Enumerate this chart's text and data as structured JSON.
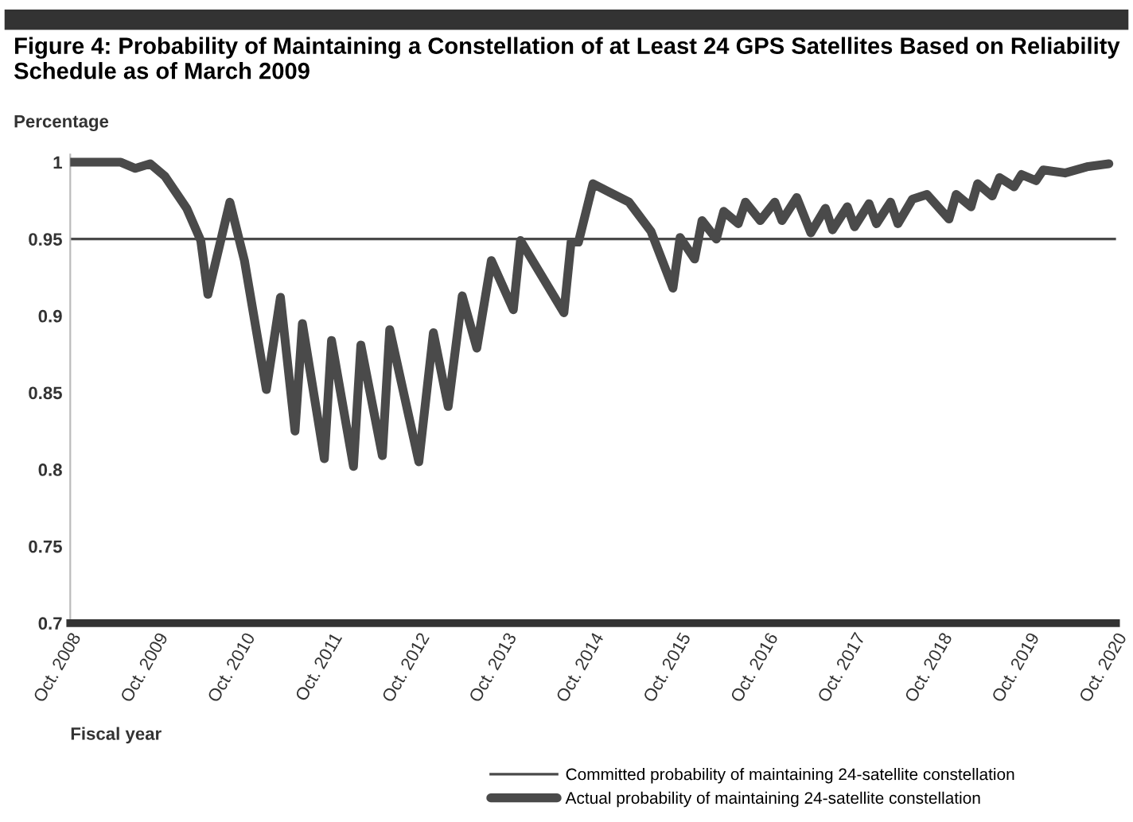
{
  "chart_data": {
    "type": "line",
    "title": "Figure 4: Probability of Maintaining a Constellation of at Least 24 GPS Satellites Based on Reliability Schedule as of March 2009",
    "ylabel": "Percentage",
    "xlabel": "Fiscal year",
    "series": [
      {
        "name": "Actual probability of maintaining 24-satellite constellation",
        "color": "#4a4a4a",
        "x": [
          "2008-10",
          "2009-05",
          "2009-07",
          "2009-09",
          "2009-11",
          "2010-02",
          "2010-04",
          "2010-05",
          "2010-08",
          "2010-10",
          "2011-01",
          "2011-03",
          "2011-05",
          "2011-06",
          "2011-09",
          "2011-10",
          "2012-01",
          "2012-02",
          "2012-05",
          "2012-06",
          "2012-10",
          "2012-12",
          "2013-02",
          "2013-04",
          "2013-06",
          "2013-08",
          "2013-11",
          "2013-12",
          "2014-06",
          "2014-07",
          "2014-08",
          "2014-10",
          "2015-03",
          "2015-06",
          "2015-09",
          "2015-10",
          "2015-12",
          "2016-01",
          "2016-03",
          "2016-04",
          "2016-06",
          "2016-07",
          "2016-09",
          "2016-11",
          "2016-12",
          "2017-02",
          "2017-04",
          "2017-06",
          "2017-07",
          "2017-09",
          "2017-10",
          "2017-12",
          "2018-01",
          "2018-03",
          "2018-04",
          "2018-06",
          "2018-08",
          "2018-11",
          "2018-12",
          "2019-02",
          "2019-03",
          "2019-05",
          "2019-06",
          "2019-08",
          "2019-09",
          "2019-11",
          "2019-12",
          "2020-03",
          "2020-06",
          "2020-09"
        ],
        "values": [
          1.0,
          1.0,
          0.996,
          0.999,
          0.991,
          0.97,
          0.949,
          0.914,
          0.974,
          0.936,
          0.852,
          0.912,
          0.825,
          0.895,
          0.807,
          0.884,
          0.802,
          0.881,
          0.809,
          0.891,
          0.805,
          0.889,
          0.841,
          0.913,
          0.879,
          0.936,
          0.904,
          0.949,
          0.902,
          0.948,
          0.948,
          0.986,
          0.974,
          0.955,
          0.918,
          0.951,
          0.937,
          0.962,
          0.95,
          0.968,
          0.96,
          0.974,
          0.962,
          0.974,
          0.962,
          0.977,
          0.954,
          0.97,
          0.956,
          0.971,
          0.958,
          0.973,
          0.96,
          0.974,
          0.96,
          0.976,
          0.979,
          0.963,
          0.979,
          0.971,
          0.986,
          0.978,
          0.99,
          0.984,
          0.992,
          0.988,
          0.995,
          0.993,
          0.997,
          0.999
        ]
      }
    ],
    "ref_lines": [
      {
        "axis": "y",
        "value": 0.95,
        "label": "Committed probability of maintaining 24-satellite constellation",
        "color": "#4a4a4a"
      }
    ],
    "xlim": [
      "2008-10",
      "2020-10"
    ],
    "xticks": [
      {
        "value": "2008-10",
        "label": "Oct. 2008"
      },
      {
        "value": "2009-10",
        "label": "Oct. 2009"
      },
      {
        "value": "2010-10",
        "label": "Oct. 2010"
      },
      {
        "value": "2011-10",
        "label": "Oct. 2011"
      },
      {
        "value": "2012-10",
        "label": "Oct. 2012"
      },
      {
        "value": "2013-10",
        "label": "Oct. 2013"
      },
      {
        "value": "2014-10",
        "label": "Oct. 2014"
      },
      {
        "value": "2015-10",
        "label": "Oct. 2015"
      },
      {
        "value": "2016-10",
        "label": "Oct. 2016"
      },
      {
        "value": "2017-10",
        "label": "Oct. 2017"
      },
      {
        "value": "2018-10",
        "label": "Oct. 2018"
      },
      {
        "value": "2019-10",
        "label": "Oct. 2019"
      },
      {
        "value": "2020-10",
        "label": "Oct. 2020"
      }
    ],
    "ylim": [
      0.7,
      1.005
    ],
    "yticks": [
      0.7,
      0.75,
      0.8,
      0.85,
      0.9,
      0.95,
      1
    ],
    "grid": false,
    "legend": "bottom",
    "marker": "none",
    "line_style": "solid"
  }
}
